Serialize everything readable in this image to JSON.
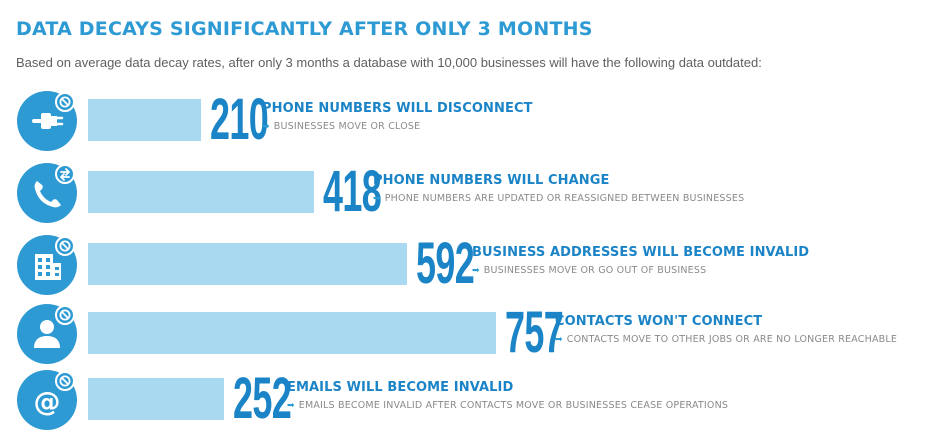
{
  "header": {
    "title": "DATA DECAYS SIGNIFICANTLY AFTER ONLY 3 MONTHS",
    "subtitle": "Based on average data decay rates, after only 3 months a database with 10,000 businesses will have the following data outdated:"
  },
  "colors": {
    "bar": "#a9d8f1",
    "accent": "#2e9ad3",
    "number": "#1b84c7",
    "icon_circle": "#2e9ad3"
  },
  "chart_data": {
    "type": "bar",
    "orientation": "horizontal",
    "title": "DATA DECAYS SIGNIFICANTLY AFTER ONLY 3 MONTHS",
    "categories": [
      "PHONE NUMBERS WILL DISCONNECT",
      "PHONE NUMBERS WILL CHANGE",
      "BUSINESS ADDRESSES WILL BECOME  INVALID",
      "CONTACTS WON'T CONNECT",
      "EMAILS WILL BECOME INVALID"
    ],
    "values": [
      210,
      418,
      592,
      757,
      252
    ],
    "value_labels": [
      "210",
      "418",
      "592",
      "757",
      "252"
    ],
    "annotations": [
      "BUSINESSES MOVE OR CLOSE",
      "PHONE NUMBERS ARE UPDATED OR REASSIGNED BETWEEN BUSINESSES",
      "BUSINESSES MOVE OR GO OUT OF BUSINESS",
      "CONTACTS MOVE TO OTHER JOBS OR ARE NO LONGER REACHABLE",
      "EMAILS BECOME INVALID AFTER CONTACTS MOVE OR BUSINESSES CEASE OPERATIONS"
    ],
    "icons": [
      "plug-icon",
      "phone-icon",
      "building-icon",
      "person-icon",
      "at-sign-icon"
    ],
    "badges": [
      "no-icon",
      "swap-arrows-icon",
      "no-icon",
      "no-icon",
      "no-icon"
    ],
    "xlim": [
      0,
      1000
    ],
    "grid": false,
    "legend": "none"
  }
}
